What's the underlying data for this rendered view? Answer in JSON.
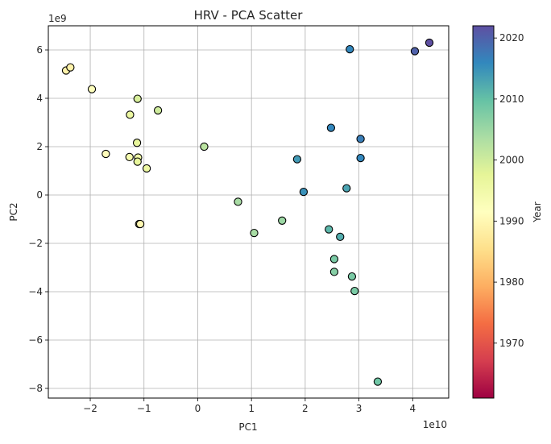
{
  "chart_data": {
    "type": "scatter",
    "title": "HRV - PCA Scatter",
    "xlabel": "PC1",
    "ylabel": "PC2",
    "x_offset_label": "1e10",
    "y_offset_label": "1e9",
    "xlim": [
      -2.78,
      4.67
    ],
    "ylim": [
      -8.4,
      7.0
    ],
    "x_ticks": [
      {
        "value": -2,
        "label": "−2"
      },
      {
        "value": -1,
        "label": "−1"
      },
      {
        "value": 0,
        "label": "0"
      },
      {
        "value": 1,
        "label": "1"
      },
      {
        "value": 2,
        "label": "2"
      },
      {
        "value": 3,
        "label": "3"
      },
      {
        "value": 4,
        "label": "4"
      }
    ],
    "y_ticks": [
      {
        "value": 6,
        "label": "6"
      },
      {
        "value": 4,
        "label": "4"
      },
      {
        "value": 2,
        "label": "2"
      },
      {
        "value": 0,
        "label": "0"
      },
      {
        "value": -2,
        "label": "−2"
      },
      {
        "value": -4,
        "label": "−4"
      },
      {
        "value": -6,
        "label": "−6"
      },
      {
        "value": -8,
        "label": "−8"
      }
    ],
    "grid": true,
    "colorbar": {
      "label": "Year",
      "min": 1961,
      "max": 2022,
      "ticks": [
        {
          "value": 1970,
          "label": "1970"
        },
        {
          "value": 1980,
          "label": "1980"
        },
        {
          "value": 1990,
          "label": "1990"
        },
        {
          "value": 2000,
          "label": "2000"
        },
        {
          "value": 2010,
          "label": "2010"
        },
        {
          "value": 2020,
          "label": "2020"
        }
      ],
      "colormap": "Spectral",
      "stops": [
        "#9e0142",
        "#d53e4f",
        "#f46d43",
        "#fdae61",
        "#fee08b",
        "#ffffbf",
        "#e6f598",
        "#abdda4",
        "#66c2a5",
        "#3288bd",
        "#5e4fa2"
      ]
    },
    "points": [
      {
        "x": -2.45,
        "y": 5.15,
        "year": 1989
      },
      {
        "x": -2.37,
        "y": 5.28,
        "year": 1989
      },
      {
        "x": -1.97,
        "y": 4.38,
        "year": 1992
      },
      {
        "x": -1.12,
        "y": 3.98,
        "year": 1999
      },
      {
        "x": -0.74,
        "y": 3.5,
        "year": 2000
      },
      {
        "x": -1.26,
        "y": 3.32,
        "year": 1996
      },
      {
        "x": -1.13,
        "y": 2.16,
        "year": 1997
      },
      {
        "x": 0.12,
        "y": 2.0,
        "year": 2002
      },
      {
        "x": -1.71,
        "y": 1.7,
        "year": 1991
      },
      {
        "x": -1.27,
        "y": 1.57,
        "year": 1994
      },
      {
        "x": -1.11,
        "y": 1.55,
        "year": 1995
      },
      {
        "x": -1.12,
        "y": 1.38,
        "year": 1997
      },
      {
        "x": -0.95,
        "y": 1.1,
        "year": 1996
      },
      {
        "x": -1.09,
        "y": -1.2,
        "year": 1991
      },
      {
        "x": -1.07,
        "y": -1.2,
        "year": 1990
      },
      {
        "x": 0.75,
        "y": -0.28,
        "year": 2004
      },
      {
        "x": 1.57,
        "y": -1.06,
        "year": 2005
      },
      {
        "x": 1.05,
        "y": -1.57,
        "year": 2004
      },
      {
        "x": 2.83,
        "y": 6.03,
        "year": 2016
      },
      {
        "x": 4.04,
        "y": 5.95,
        "year": 2020
      },
      {
        "x": 4.31,
        "y": 6.3,
        "year": 2022
      },
      {
        "x": 2.48,
        "y": 2.78,
        "year": 2016
      },
      {
        "x": 3.03,
        "y": 2.32,
        "year": 2017
      },
      {
        "x": 1.85,
        "y": 1.48,
        "year": 2014
      },
      {
        "x": 3.03,
        "y": 1.53,
        "year": 2016
      },
      {
        "x": 1.97,
        "y": 0.13,
        "year": 2015
      },
      {
        "x": 2.77,
        "y": 0.28,
        "year": 2013
      },
      {
        "x": 2.44,
        "y": -1.42,
        "year": 2011
      },
      {
        "x": 2.65,
        "y": -1.73,
        "year": 2012
      },
      {
        "x": 2.54,
        "y": -2.65,
        "year": 2008
      },
      {
        "x": 2.54,
        "y": -3.18,
        "year": 2007
      },
      {
        "x": 2.87,
        "y": -3.37,
        "year": 2008
      },
      {
        "x": 2.92,
        "y": -3.97,
        "year": 2008
      },
      {
        "x": 3.35,
        "y": -7.72,
        "year": 2009
      }
    ]
  }
}
